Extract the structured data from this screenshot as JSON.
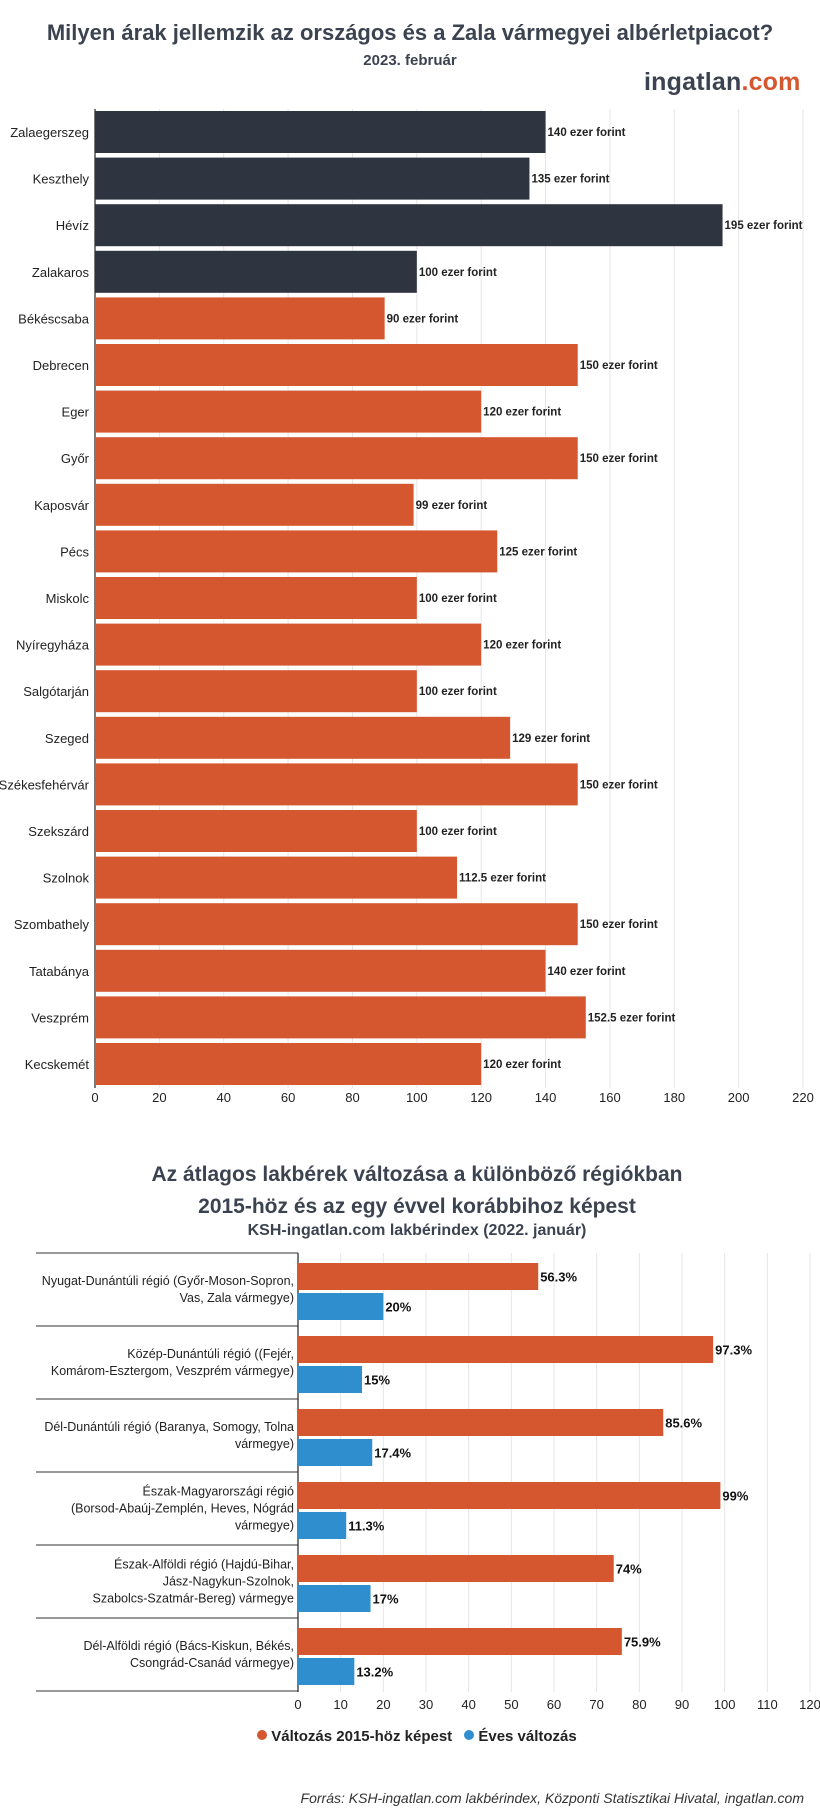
{
  "title": "Milyen árak jellemzik az országos és a Zala vármegyei albérletpiacot?",
  "subtitle": "2023. február",
  "brand": {
    "name": "ingatlan",
    "tld": ".com"
  },
  "second_title_line1": "Az átlagos lakbérek változása a különböző régiókban",
  "second_title_line2": "2015-höz és az egy évvel korábbihoz képest",
  "second_subtitle": "KSH-ingatlan.com lakbérindex (2022. január)",
  "source": "Forrás: KSH-ingatlan.com lakbérindex, Központi Statisztikai Hivatal, ingatlan.com",
  "colors": {
    "zala": "#2e3440",
    "national": "#d4572f",
    "annual": "#2f8fce",
    "grid": "#e6e6e6"
  },
  "chart_data": [
    {
      "type": "bar",
      "orientation": "horizontal",
      "title": "Milyen árak jellemzik az országos és a Zala vármegyei albérletpiacot?",
      "subtitle": "2023. február",
      "categories": [
        "Zalaegerszeg",
        "Keszthely",
        "Hévíz",
        "Zalakaros",
        "Békéscsaba",
        "Debrecen",
        "Eger",
        "Győr",
        "Kaposvár",
        "Pécs",
        "Miskolc",
        "Nyíregyháza",
        "Salgótarján",
        "Szeged",
        "Székesfehérvár",
        "Szekszárd",
        "Szolnok",
        "Szombathely",
        "Tatabánya",
        "Veszprém",
        "Kecskemét"
      ],
      "values": [
        140,
        135,
        195,
        100,
        90,
        150,
        120,
        150,
        99,
        125,
        100,
        120,
        100,
        129,
        150,
        100,
        112.5,
        150,
        140,
        152.5,
        120
      ],
      "value_labels": [
        "140 ezer forint",
        "135 ezer forint",
        "195 ezer forint",
        "100 ezer forint",
        "90 ezer forint",
        "150 ezer forint",
        "120 ezer forint",
        "150 ezer forint",
        "99 ezer forint",
        "125 ezer forint",
        "100 ezer forint",
        "120 ezer forint",
        "100 ezer forint",
        "129 ezer forint",
        "150 ezer forint",
        "100 ezer forint",
        "112.5 ezer forint",
        "150 ezer forint",
        "140 ezer forint",
        "152.5 ezer forint",
        "120 ezer forint"
      ],
      "bar_groups": [
        "zala",
        "zala",
        "zala",
        "zala",
        "national",
        "national",
        "national",
        "national",
        "national",
        "national",
        "national",
        "national",
        "national",
        "national",
        "national",
        "national",
        "national",
        "national",
        "national",
        "national",
        "national"
      ],
      "xlim": [
        0,
        220
      ],
      "xticks": [
        0,
        20,
        40,
        60,
        80,
        100,
        120,
        140,
        160,
        180,
        200,
        220
      ],
      "grid": true
    },
    {
      "type": "bar",
      "orientation": "horizontal",
      "title": "Az átlagos lakbérek változása a különböző régiókban 2015-höz és az egy évvel korábbihoz képest",
      "subtitle": "KSH-ingatlan.com lakbérindex (2022. január)",
      "categories": [
        [
          "Nyugat-Dunántúli régió (Győr-Moson-Sopron,",
          "Vas, Zala vármegye)"
        ],
        [
          "Közép-Dunántúli régió ((Fejér,",
          "Komárom-Esztergom, Veszprém vármegye)"
        ],
        [
          "Dél-Dunántúli régió (Baranya, Somogy, Tolna",
          "vármegye)"
        ],
        [
          "Észak-Magyarországi régió",
          "(Borsod-Abaúj-Zemplén, Heves, Nógrád",
          "vármegye)"
        ],
        [
          "Észak-Alföldi régió (Hajdú-Bihar,",
          "Jász-Nagykun-Szolnok,",
          "Szabolcs-Szatmár-Bereg) vármegye"
        ],
        [
          "Dél-Alföldi régió (Bács-Kiskun, Békés,",
          "Csongrád-Csanád vármegye)"
        ]
      ],
      "series": [
        {
          "name": "Változás 2015-höz képest",
          "values": [
            56.3,
            97.3,
            85.6,
            99,
            74,
            75.9
          ],
          "labels": [
            "56.3%",
            "97.3%",
            "85.6%",
            "99%",
            "74%",
            "75.9%"
          ],
          "color": "#d4572f"
        },
        {
          "name": "Éves változás",
          "values": [
            20,
            15,
            17.4,
            11.3,
            17,
            13.2
          ],
          "labels": [
            "20%",
            "15%",
            "17.4%",
            "11.3%",
            "17%",
            "13.2%"
          ],
          "color": "#2f8fce"
        }
      ],
      "xlim": [
        0,
        120
      ],
      "xticks": [
        0,
        10,
        20,
        30,
        40,
        50,
        60,
        70,
        80,
        90,
        100,
        110,
        120
      ],
      "grid": true,
      "legend": "bottom-center"
    }
  ]
}
